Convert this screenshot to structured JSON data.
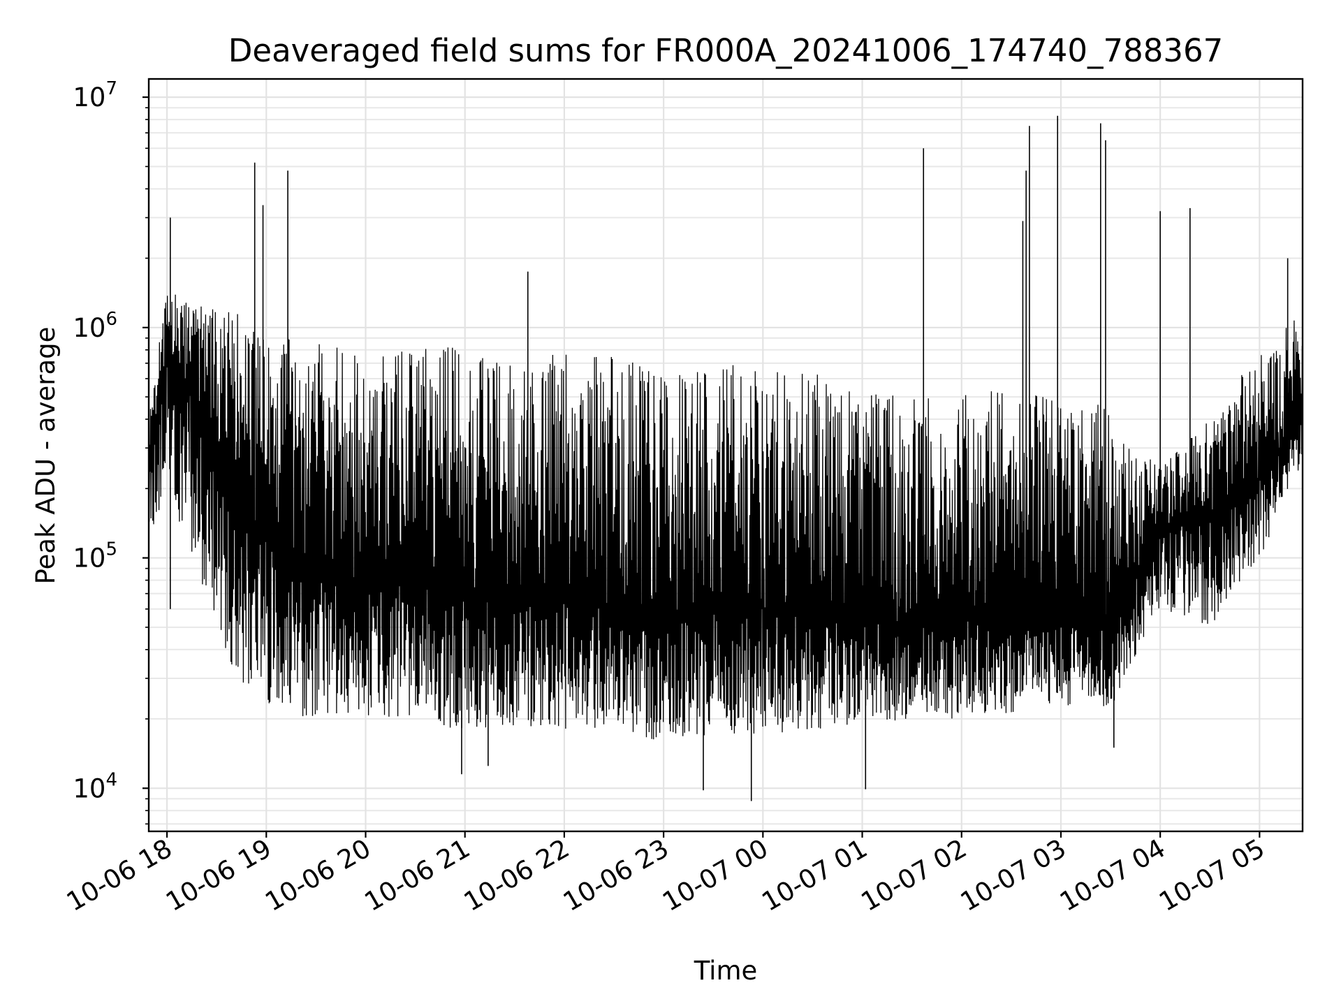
{
  "chart_data": {
    "type": "line",
    "title": "Deaveraged field sums for FR000A_20241006_174740_788367",
    "xlabel": "Time",
    "ylabel": "Peak ADU - average",
    "y_scale": "log",
    "ylim": [
      6500,
      12000000
    ],
    "xlim": [
      "2024-10-06 17:49",
      "2024-10-07 05:26"
    ],
    "x_tick_labels": [
      "10-06 18",
      "10-06 19",
      "10-06 20",
      "10-06 21",
      "10-06 22",
      "10-06 23",
      "10-07 00",
      "10-07 01",
      "10-07 02",
      "10-07 03",
      "10-07 04",
      "10-07 05"
    ],
    "y_ticks": [
      {
        "base": "10",
        "exp": "4",
        "value": 10000
      },
      {
        "base": "10",
        "exp": "5",
        "value": 100000
      },
      {
        "base": "10",
        "exp": "6",
        "value": 1000000
      },
      {
        "base": "10",
        "exp": "7",
        "value": 10000000
      }
    ],
    "grid": true,
    "legend": "none",
    "line_color": "#000000",
    "series": [
      {
        "x": [
          "2024-10-06 17:49",
          "2024-10-06 18:00",
          "2024-10-06 18:15",
          "2024-10-06 18:30",
          "2024-10-06 18:45",
          "2024-10-06 19:00",
          "2024-10-06 19:30",
          "2024-10-06 20:00",
          "2024-10-06 20:30",
          "2024-10-06 21:00",
          "2024-10-06 21:30",
          "2024-10-06 22:00",
          "2024-10-06 22:30",
          "2024-10-06 23:00",
          "2024-10-06 23:30",
          "2024-10-07 00:00",
          "2024-10-07 00:30",
          "2024-10-07 01:00",
          "2024-10-07 01:30",
          "2024-10-07 02:00",
          "2024-10-07 02:30",
          "2024-10-07 03:00",
          "2024-10-07 03:30",
          "2024-10-07 04:00",
          "2024-10-07 04:30",
          "2024-10-07 05:00",
          "2024-10-07 05:26"
        ],
        "y_high": [
          400000,
          1500000,
          1300000,
          1200000,
          1150000,
          1000000,
          850000,
          850000,
          850000,
          850000,
          800000,
          800000,
          750000,
          650000,
          700000,
          700000,
          650000,
          550000,
          500000,
          550000,
          520000,
          500000,
          450000,
          250000,
          400000,
          800000,
          1200000
        ],
        "y_typical": [
          280000,
          700000,
          500000,
          300000,
          150000,
          120000,
          90000,
          80000,
          80000,
          75000,
          70000,
          65000,
          60000,
          55000,
          60000,
          60000,
          55000,
          55000,
          50000,
          55000,
          55000,
          55000,
          50000,
          130000,
          150000,
          220000,
          400000
        ],
        "y_low": [
          120000,
          200000,
          100000,
          50000,
          25000,
          22000,
          20000,
          20000,
          18000,
          18000,
          18000,
          18000,
          17000,
          16000,
          17000,
          17000,
          18000,
          19000,
          20000,
          20000,
          21000,
          22000,
          22000,
          60000,
          50000,
          100000,
          250000
        ]
      }
    ],
    "annotations": {
      "spikes": [
        {
          "x": "2024-10-06 18:02",
          "y": 3000000
        },
        {
          "x": "2024-10-06 18:53",
          "y": 5200000
        },
        {
          "x": "2024-10-06 18:58",
          "y": 3400000
        },
        {
          "x": "2024-10-06 19:13",
          "y": 4800000
        },
        {
          "x": "2024-10-06 21:38",
          "y": 1750000
        },
        {
          "x": "2024-10-07 01:37",
          "y": 6000000
        },
        {
          "x": "2024-10-07 02:37",
          "y": 2900000
        },
        {
          "x": "2024-10-07 02:39",
          "y": 4800000
        },
        {
          "x": "2024-10-07 02:41",
          "y": 7500000
        },
        {
          "x": "2024-10-07 02:58",
          "y": 8300000
        },
        {
          "x": "2024-10-07 03:24",
          "y": 7700000
        },
        {
          "x": "2024-10-07 03:27",
          "y": 6500000
        },
        {
          "x": "2024-10-07 04:00",
          "y": 3200000
        },
        {
          "x": "2024-10-07 04:18",
          "y": 3300000
        },
        {
          "x": "2024-10-07 05:17",
          "y": 2000000
        }
      ],
      "dips": [
        {
          "x": "2024-10-06 18:02",
          "y": 60000
        },
        {
          "x": "2024-10-06 20:58",
          "y": 11500
        },
        {
          "x": "2024-10-06 21:14",
          "y": 12500
        },
        {
          "x": "2024-10-06 23:24",
          "y": 9800
        },
        {
          "x": "2024-10-06 23:53",
          "y": 8800
        },
        {
          "x": "2024-10-07 01:02",
          "y": 9900
        },
        {
          "x": "2024-10-07 03:32",
          "y": 15000
        }
      ]
    }
  }
}
